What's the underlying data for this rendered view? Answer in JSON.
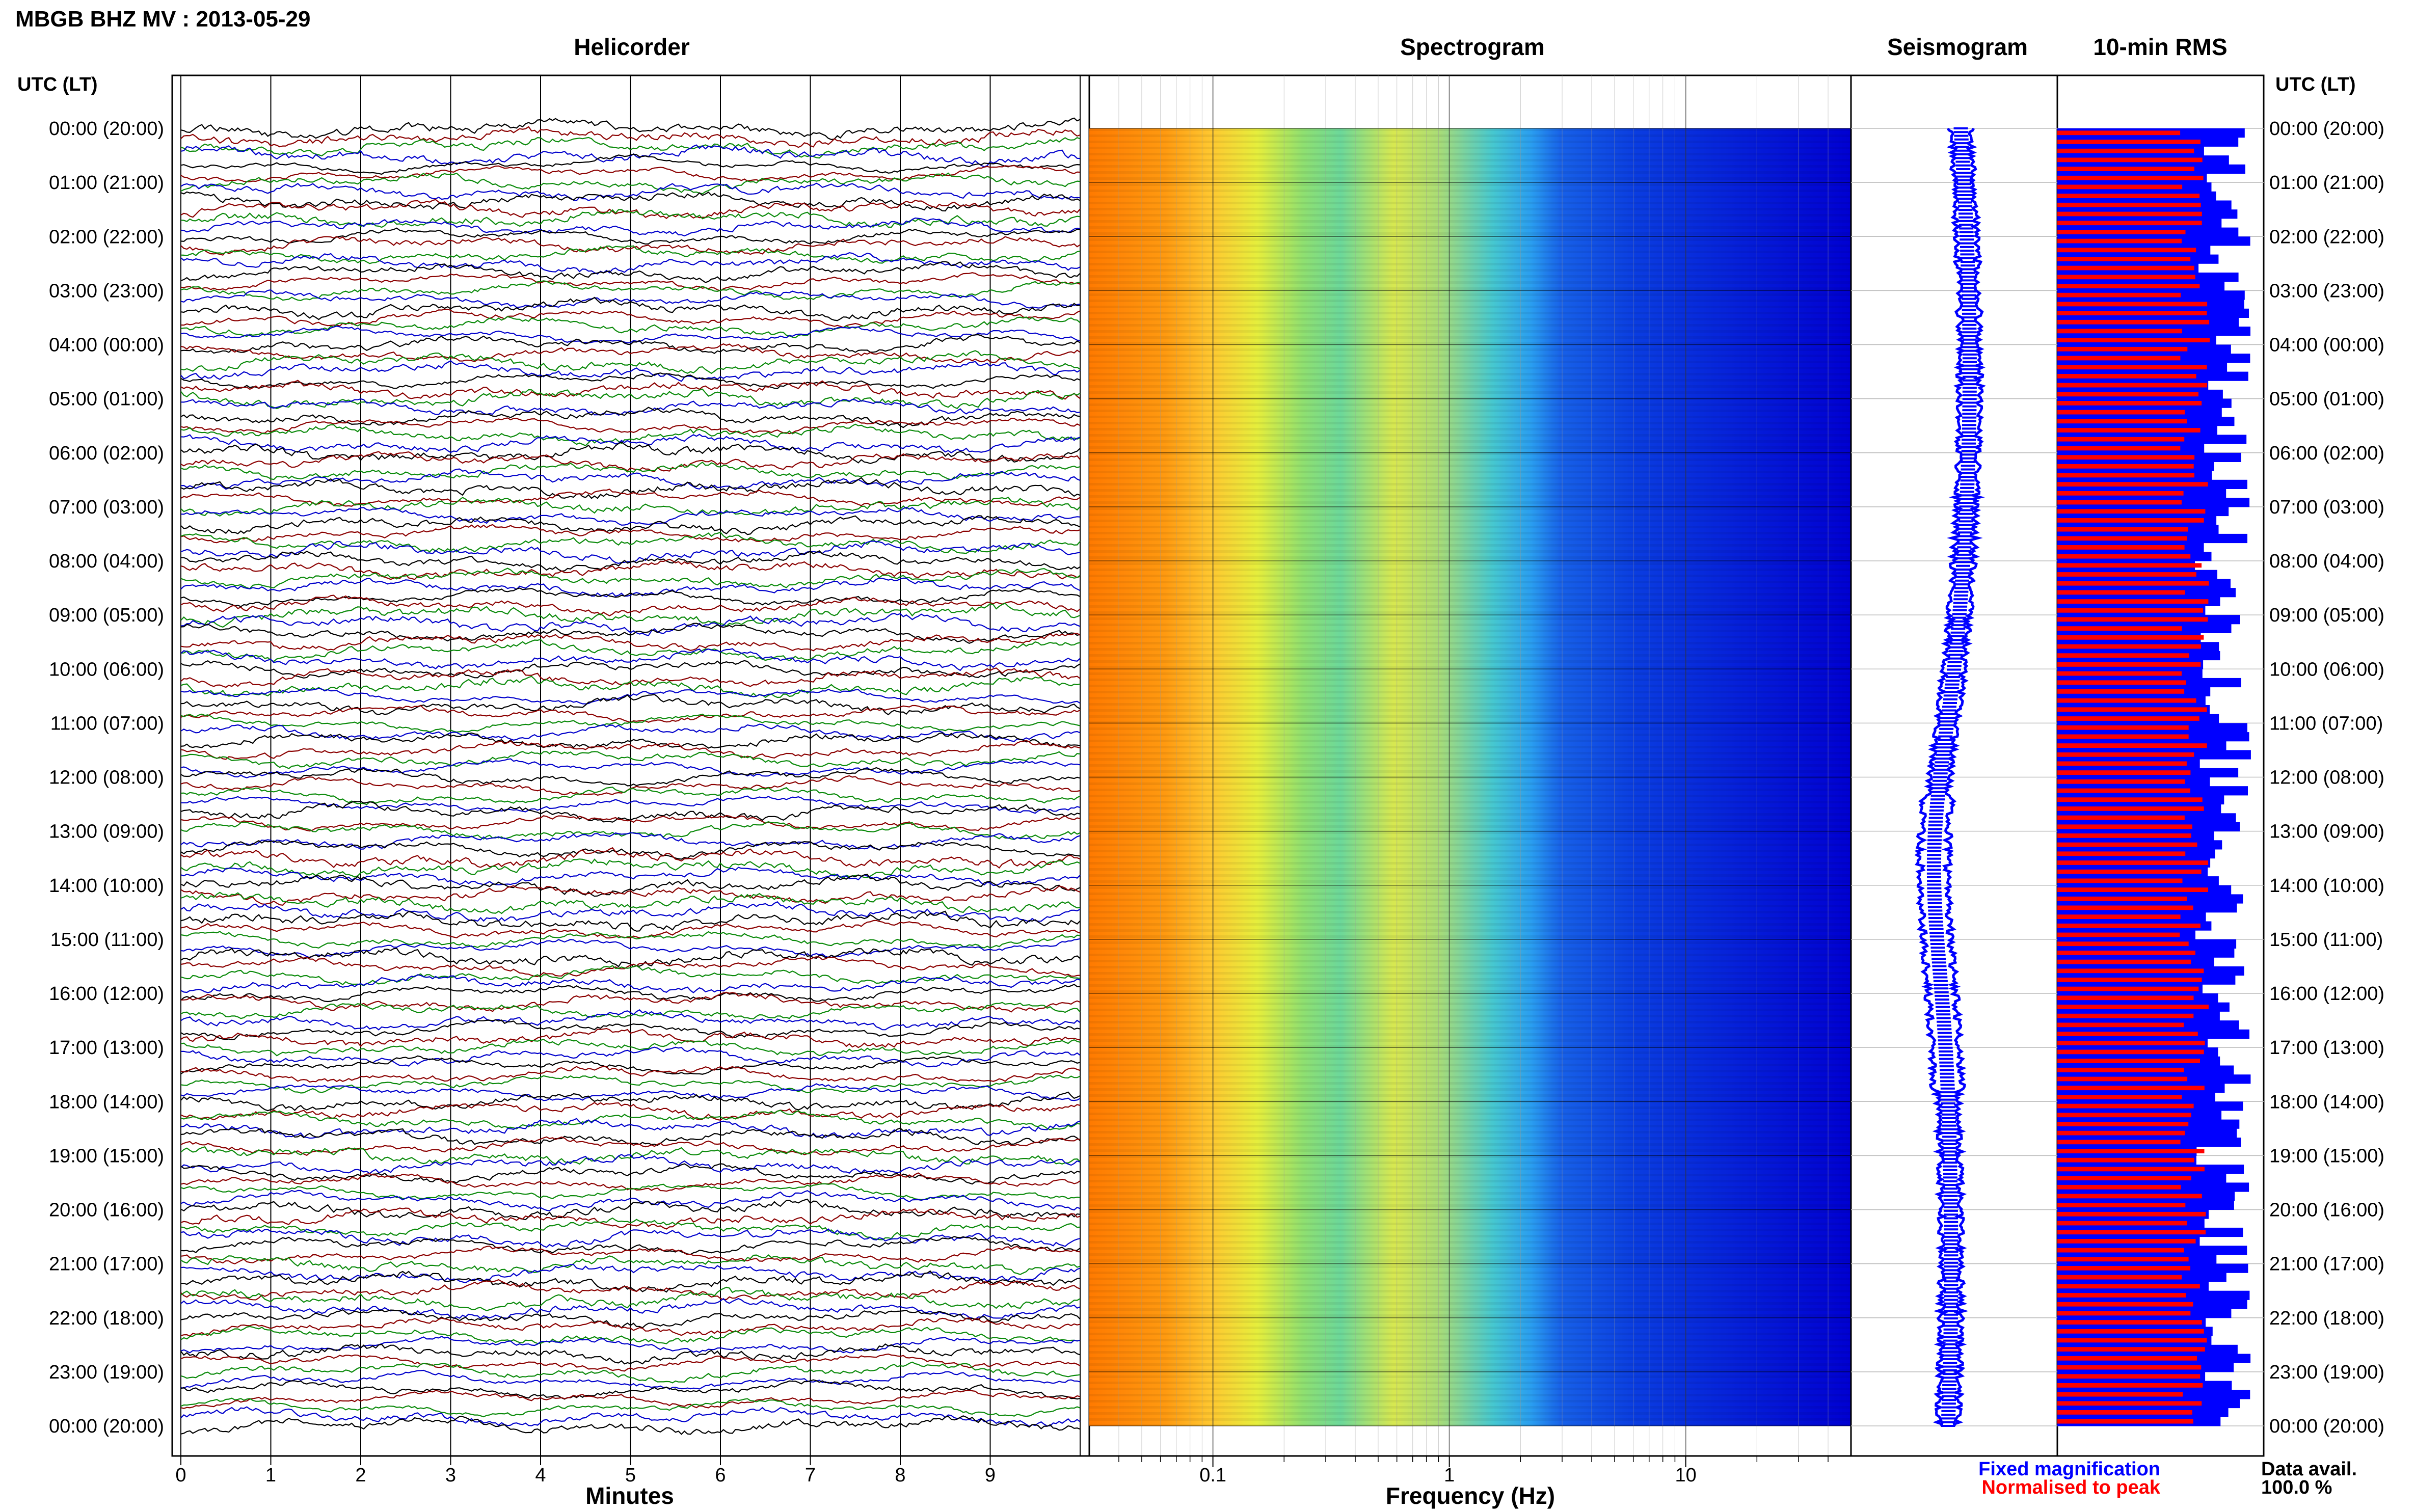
{
  "header": {
    "station_title": "MBGB BHZ MV : 2013-05-29",
    "utc_lt_label_left": "UTC (LT)",
    "utc_lt_label_right": "UTC (LT)"
  },
  "panels": {
    "helicorder_title": "Helicorder",
    "spectrogram_title": "Spectrogram",
    "seismogram_title": "Seismogram",
    "rms_title": "10-min RMS"
  },
  "time_labels": [
    "00:00 (20:00)",
    "01:00 (21:00)",
    "02:00 (22:00)",
    "03:00 (23:00)",
    "04:00 (00:00)",
    "05:00 (01:00)",
    "06:00 (02:00)",
    "07:00 (03:00)",
    "08:00 (04:00)",
    "09:00 (05:00)",
    "10:00 (06:00)",
    "11:00 (07:00)",
    "12:00 (08:00)",
    "13:00 (09:00)",
    "14:00 (10:00)",
    "15:00 (11:00)",
    "16:00 (12:00)",
    "17:00 (13:00)",
    "18:00 (14:00)",
    "19:00 (15:00)",
    "20:00 (16:00)",
    "21:00 (17:00)",
    "22:00 (18:00)",
    "23:00 (19:00)",
    "00:00 (20:00)"
  ],
  "helicorder_axis": {
    "xlabel": "Minutes",
    "ticks": [
      "0",
      "1",
      "2",
      "3",
      "4",
      "5",
      "6",
      "7",
      "8",
      "9"
    ]
  },
  "spectrogram_axis": {
    "xlabel": "Frequency (Hz)",
    "ticks": [
      "0.1",
      "1",
      "10"
    ]
  },
  "footer": {
    "legend_fixed": "Fixed magnification",
    "legend_normalised": "Normalised to peak",
    "data_avail_label": "Data avail.",
    "data_avail_value": "100.0 %"
  },
  "colors": {
    "helicorder_trace_cycle": [
      "#000000",
      "#8b0000",
      "#0a8a0a",
      "#0000cc"
    ],
    "seismogram": "#0000ff",
    "rms_fixed": "#0000ff",
    "rms_normalised": "#ff0000",
    "legend_fixed_text": "#0000ff",
    "legend_normalised_text": "#ff0000",
    "spectrogram_colormap": [
      "#ff8c00",
      "#ffd700",
      "#c8e63c",
      "#50d2b4",
      "#1e90ff",
      "#0000d2"
    ]
  },
  "chart_data": [
    {
      "type": "line",
      "title": "Helicorder",
      "xlabel": "Minutes",
      "ylabel": "UTC (LT)",
      "xlim": [
        0,
        10
      ],
      "ylim": [
        0,
        24
      ],
      "traces_per_hour": 6,
      "trace_minutes": 10,
      "series_colors_cycle": [
        "#000000",
        "#8b0000",
        "#0a8a0a",
        "#0000cc"
      ]
    },
    {
      "type": "heatmap",
      "title": "Spectrogram",
      "xlabel": "Frequency (Hz)",
      "xscale": "log",
      "xlim": [
        0.03,
        50
      ],
      "ylim": [
        0,
        24
      ],
      "x_ticks": [
        0.1,
        1,
        10
      ],
      "grid": true
    },
    {
      "type": "line",
      "title": "Seismogram",
      "ylim": [
        0,
        24
      ],
      "series": [
        {
          "color": "#0000ff"
        }
      ]
    },
    {
      "type": "bar",
      "title": "10-min RMS",
      "orientation": "horizontal",
      "bins_per_hour": 6,
      "ylim": [
        0,
        24
      ],
      "series": [
        {
          "name": "Fixed magnification",
          "color": "#0000ff"
        },
        {
          "name": "Normalised to peak",
          "color": "#ff0000"
        }
      ]
    }
  ]
}
